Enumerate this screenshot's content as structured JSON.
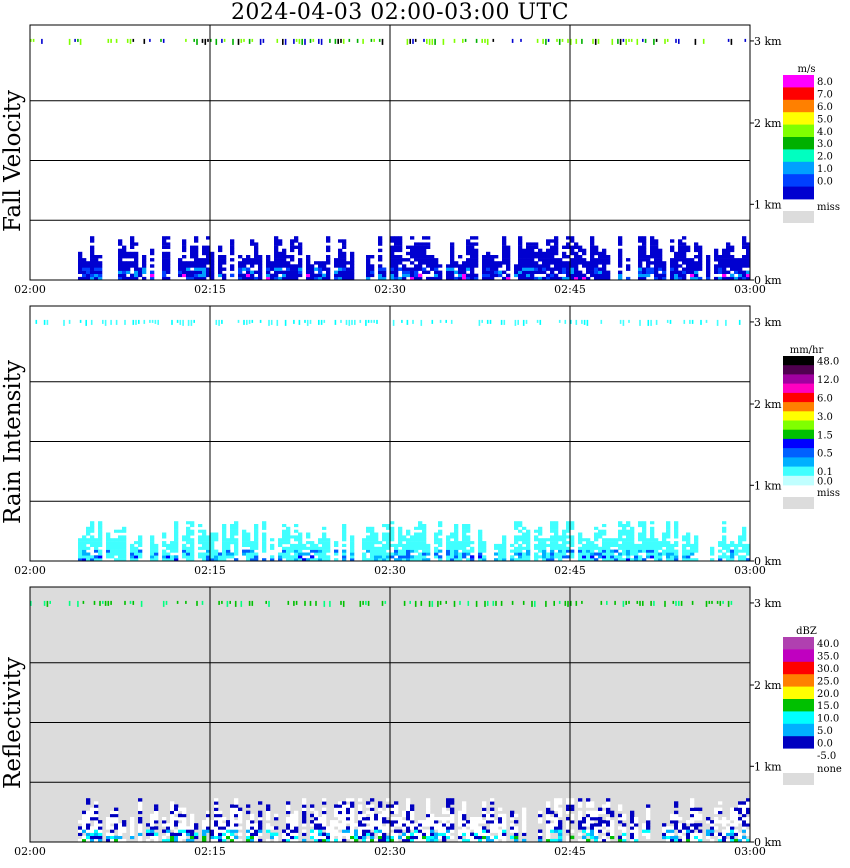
{
  "title": "2024-04-03  02:00-03:00 UTC",
  "chart_data": [
    {
      "type": "heatmap",
      "name": "Fall Velocity",
      "ylabel": "Fall Velocity",
      "x_ticks": [
        "02:00",
        "02:15",
        "02:30",
        "02:45",
        "03:00"
      ],
      "xlim": [
        "02:00",
        "03:00"
      ],
      "y_ticks": [
        "0 km",
        "1 km",
        "2 km",
        "3 km"
      ],
      "ylim_km": [
        0,
        3.2
      ],
      "grid": true,
      "background": "#ffffff",
      "legend": {
        "unit": "m/s",
        "entries": [
          {
            "label": "8.0",
            "color": "#ff00ff"
          },
          {
            "label": "7.0",
            "color": "#ff0000"
          },
          {
            "label": "6.0",
            "color": "#ff8000"
          },
          {
            "label": "5.0",
            "color": "#ffff00"
          },
          {
            "label": "4.0",
            "color": "#80ff00"
          },
          {
            "label": "3.0",
            "color": "#00b000"
          },
          {
            "label": "2.0",
            "color": "#00ffc0"
          },
          {
            "label": "1.0",
            "color": "#00a0ff"
          },
          {
            "label": "0.0",
            "color": "#0040ff"
          },
          {
            "label": "",
            "color": "#0000d0"
          }
        ],
        "miss_label": "miss",
        "miss_color": "#dcdcdc"
      },
      "echo_top_km": 0.55,
      "echo_start": "02:04",
      "echo_colors": [
        "#0000d0",
        "#0000d0",
        "#0000d0",
        "#0040ff",
        "#00a0ff",
        "#ff00ff"
      ],
      "strip_colors": [
        "#80ff00",
        "#00b000",
        "#80ff00",
        "#0000d0",
        "#000000"
      ]
    },
    {
      "type": "heatmap",
      "name": "Rain Intensity",
      "ylabel": "Rain Intensity",
      "x_ticks": [
        "02:00",
        "02:15",
        "02:30",
        "02:45",
        "03:00"
      ],
      "xlim": [
        "02:00",
        "03:00"
      ],
      "y_ticks": [
        "0 km",
        "1 km",
        "2 km",
        "3 km"
      ],
      "ylim_km": [
        0,
        3.2
      ],
      "grid": true,
      "background": "#ffffff",
      "legend": {
        "unit": "mm/hr",
        "entries": [
          {
            "label": "48.0",
            "color": "#000000"
          },
          {
            "label": "",
            "color": "#500050"
          },
          {
            "label": "12.0",
            "color": "#a000a0"
          },
          {
            "label": "",
            "color": "#ff00c0"
          },
          {
            "label": "6.0",
            "color": "#ff0000"
          },
          {
            "label": "",
            "color": "#ff8000"
          },
          {
            "label": "3.0",
            "color": "#ffff00"
          },
          {
            "label": "",
            "color": "#80ff00"
          },
          {
            "label": "1.5",
            "color": "#00c000"
          },
          {
            "label": "",
            "color": "#0000ff"
          },
          {
            "label": "0.5",
            "color": "#0060ff"
          },
          {
            "label": "",
            "color": "#00b0ff"
          },
          {
            "label": "0.1",
            "color": "#40ffff"
          },
          {
            "label": "0.0",
            "color": "#c0ffff"
          }
        ],
        "miss_label": "miss",
        "miss_color": "#dcdcdc"
      },
      "echo_top_km": 0.5,
      "echo_start": "02:04",
      "echo_colors": [
        "#40ffff",
        "#40ffff",
        "#40ffff",
        "#00b0ff",
        "#0060ff",
        "#0000ff"
      ],
      "strip_colors": [
        "#40ffff",
        "#40ffff",
        "#00ffff"
      ]
    },
    {
      "type": "heatmap",
      "name": "Reflectivity",
      "ylabel": "Reflectivity",
      "x_ticks": [
        "02:00",
        "02:15",
        "02:30",
        "02:45",
        "03:00"
      ],
      "xlim": [
        "02:00",
        "03:00"
      ],
      "y_ticks": [
        "0 km",
        "1 km",
        "2 km",
        "3 km"
      ],
      "ylim_km": [
        0,
        3.2
      ],
      "grid": true,
      "background": "#dcdcdc",
      "legend": {
        "unit": "dBZ",
        "entries": [
          {
            "label": "40.0",
            "color": "#b040b0"
          },
          {
            "label": "35.0",
            "color": "#c000c0"
          },
          {
            "label": "30.0",
            "color": "#ff0000"
          },
          {
            "label": "25.0",
            "color": "#ff8000"
          },
          {
            "label": "20.0",
            "color": "#ffff00"
          },
          {
            "label": "15.0",
            "color": "#00c000"
          },
          {
            "label": "10.0",
            "color": "#00ffff"
          },
          {
            "label": "5.0",
            "color": "#00b0ff"
          },
          {
            "label": "0.0",
            "color": "#0000c0"
          },
          {
            "label": "-5.0",
            "color": "#ffffff"
          }
        ],
        "miss_label": "none",
        "miss_color": "#dcdcdc"
      },
      "echo_top_km": 0.55,
      "echo_start": "02:04",
      "echo_colors": [
        "#ffffff",
        "#ffffff",
        "#0000c0",
        "#00b0ff",
        "#00ffff",
        "#00c000"
      ],
      "strip_colors": [
        "#00c000",
        "#00ff80",
        "#00c000"
      ]
    }
  ]
}
